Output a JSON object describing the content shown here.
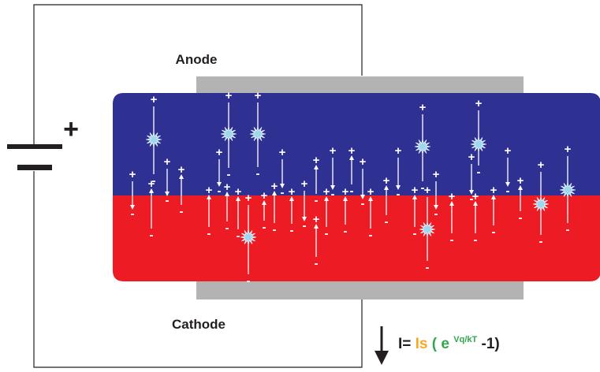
{
  "labels": {
    "anode": "Anode",
    "cathode": "Cathode",
    "battery_plus": "+"
  },
  "equation": {
    "prefix": "I=",
    "is": "Is",
    "open": "(",
    "e": "e",
    "exponent": "Vq/kT",
    "tail": "-1)"
  },
  "charges": {
    "positive": "+",
    "negative": "-"
  },
  "colors": {
    "p_region": "#2e3192",
    "n_region": "#ed1c24",
    "electrode": "#b3b3b3",
    "wire": "#231f20",
    "is_highlight": "#f7a823",
    "paren_green": "#2fa84f",
    "spark": "#9fd6f0"
  }
}
